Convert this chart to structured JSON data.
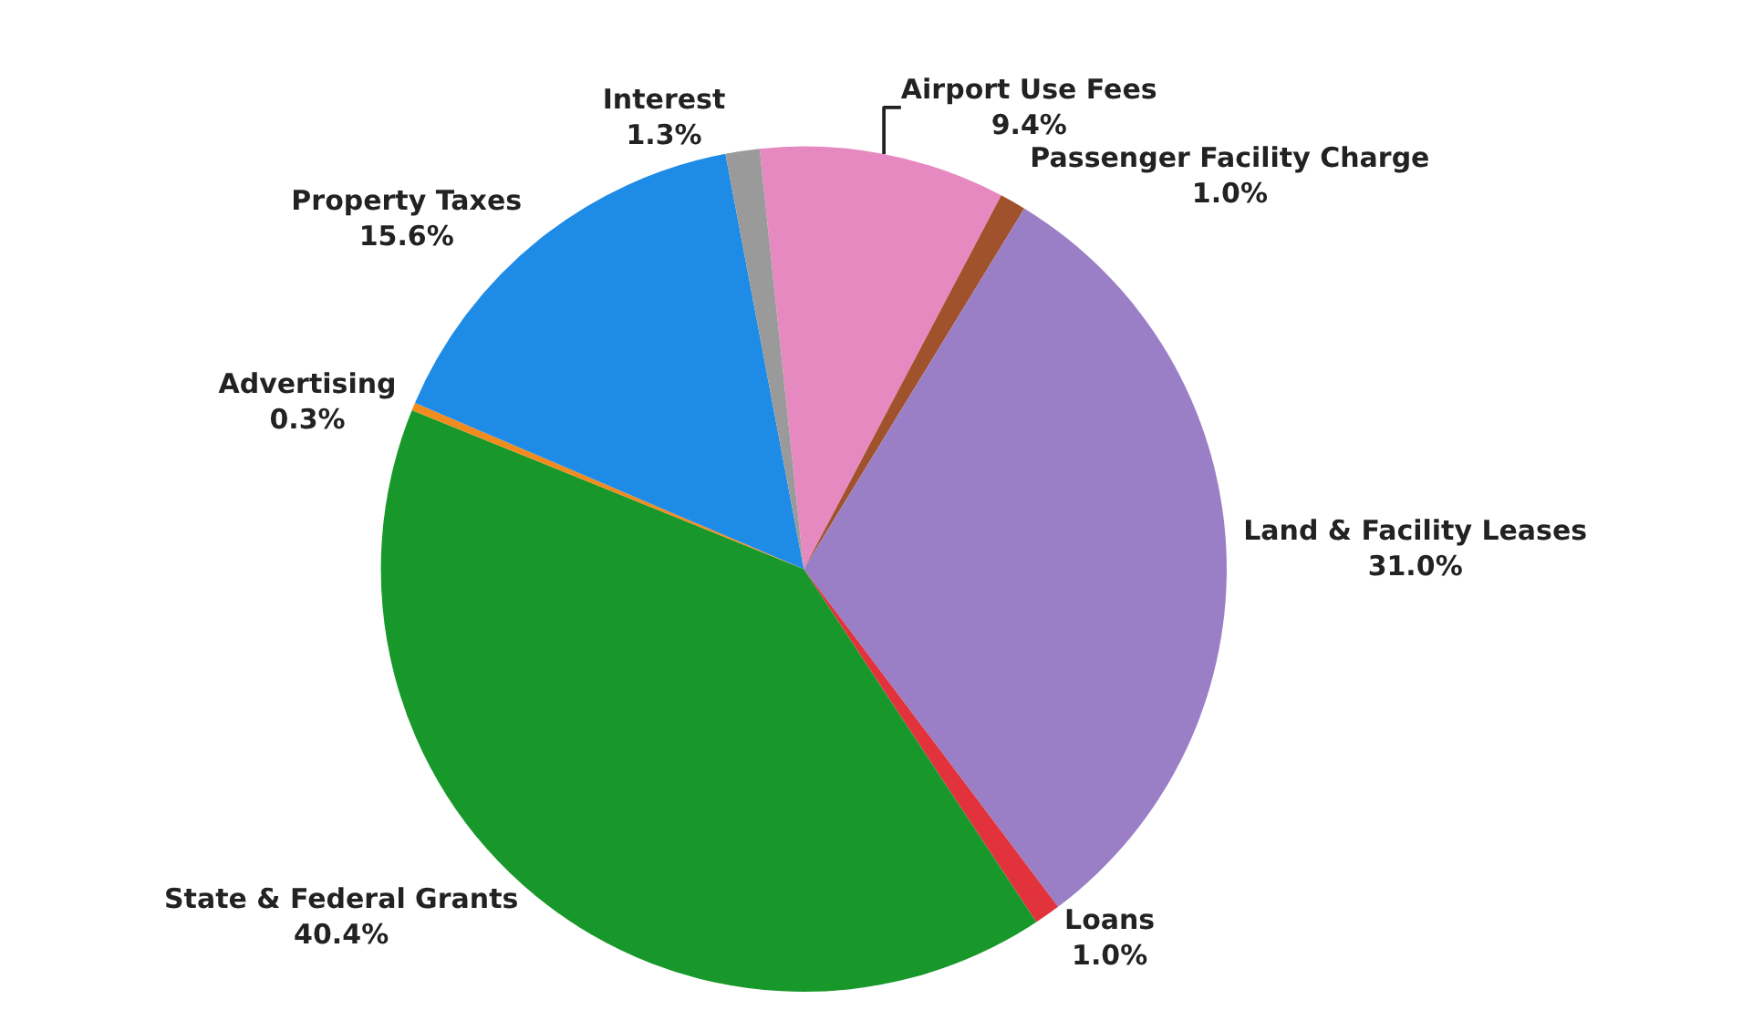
{
  "chart_data": {
    "type": "pie",
    "categories": [
      "Airport Use Fees",
      "Passenger Facility Charge",
      "Land & Facility Leases",
      "Loans",
      "State & Federal Grants",
      "Advertising",
      "Property Taxes",
      "Interest"
    ],
    "values": [
      9.4,
      1.0,
      31.0,
      1.0,
      40.4,
      0.3,
      15.6,
      1.3
    ],
    "value_labels": [
      "9.4%",
      "1.0%",
      "31.0%",
      "1.0%",
      "40.4%",
      "0.3%",
      "15.6%",
      "1.3%"
    ],
    "colors": [
      "#e689c0",
      "#a0522d",
      "#9a7fc6",
      "#e2323c",
      "#18982a",
      "#f28b1e",
      "#1e8be6",
      "#9a9a9a"
    ],
    "legend": false
  }
}
